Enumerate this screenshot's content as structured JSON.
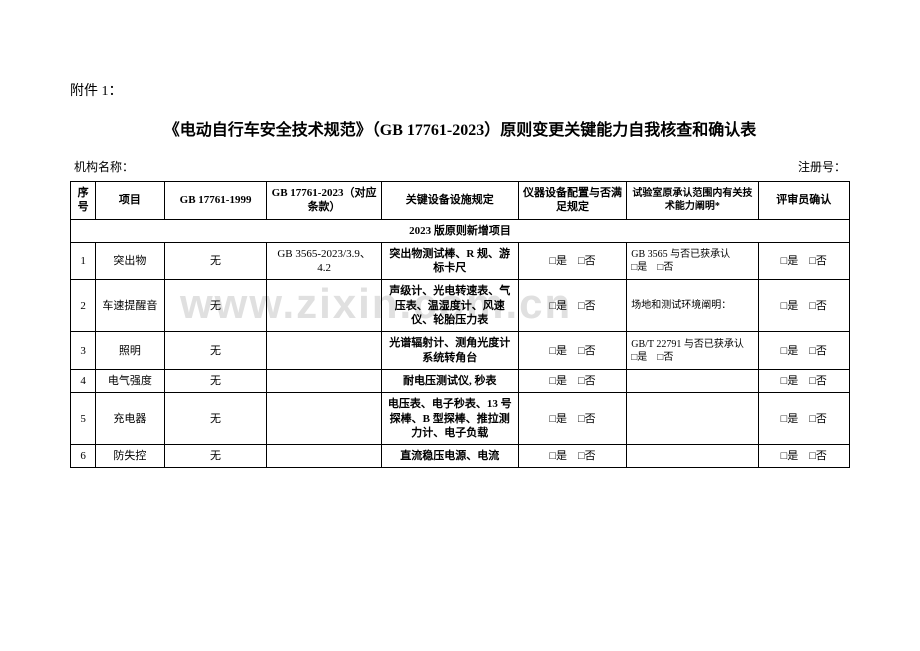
{
  "attachment_label": "附件 1：",
  "title": "《电动自行车安全技术规范》（GB 17761-2023）原则变更关键能力自我核查和确认表",
  "meta": {
    "org_label": "机构名称：",
    "reg_label": "注册号："
  },
  "headers": {
    "seq": "序号",
    "item": "项目",
    "gb1999": "GB 17761-1999",
    "gb2023": "GB 17761-2023（对应条款）",
    "equipment": "关键设备设施规定",
    "config": "仪器设备配置与否满足规定",
    "scope": "试验室原承认范围内有关技术能力阐明*",
    "review": "评审员确认"
  },
  "section_title": "2023 版原则新增项目",
  "yes": "□是",
  "no": "□否",
  "rows": [
    {
      "seq": "1",
      "item": "突出物",
      "gb1999": "无",
      "gb2023": "GB 3565-2023/3.9、4.2",
      "equipment": "突出物测试棒、R 规、游标卡尺",
      "scope": "GB 3565  与否已获承认"
    },
    {
      "seq": "2",
      "item": "车速提醒音",
      "gb1999": "无",
      "gb2023": "",
      "equipment": "声级计、光电转速表、气压表、温湿度计、风速仪、轮胎压力表",
      "scope": "场地和测试环境阐明："
    },
    {
      "seq": "3",
      "item": "照明",
      "gb1999": "无",
      "gb2023": "",
      "equipment": "光谱辐射计、测角光度计系统转角台",
      "scope": "GB/T 22791 与否已获承认"
    },
    {
      "seq": "4",
      "item": "电气强度",
      "gb1999": "无",
      "gb2023": "",
      "equipment": "耐电压测试仪, 秒表",
      "scope": ""
    },
    {
      "seq": "5",
      "item": "充电器",
      "gb1999": "无",
      "gb2023": "",
      "equipment": "电压表、电子秒表、13 号探棒、B 型探棒、推拉测力计、电子负载",
      "scope": ""
    },
    {
      "seq": "6",
      "item": "防失控",
      "gb1999": "无",
      "gb2023": "",
      "equipment": "直流稳压电源、电流",
      "scope": ""
    }
  ],
  "watermark": "www.zixin.com.cn",
  "colors": {
    "text": "#000000",
    "background": "#ffffff",
    "watermark": "#e0e0e0",
    "border": "#000000"
  }
}
